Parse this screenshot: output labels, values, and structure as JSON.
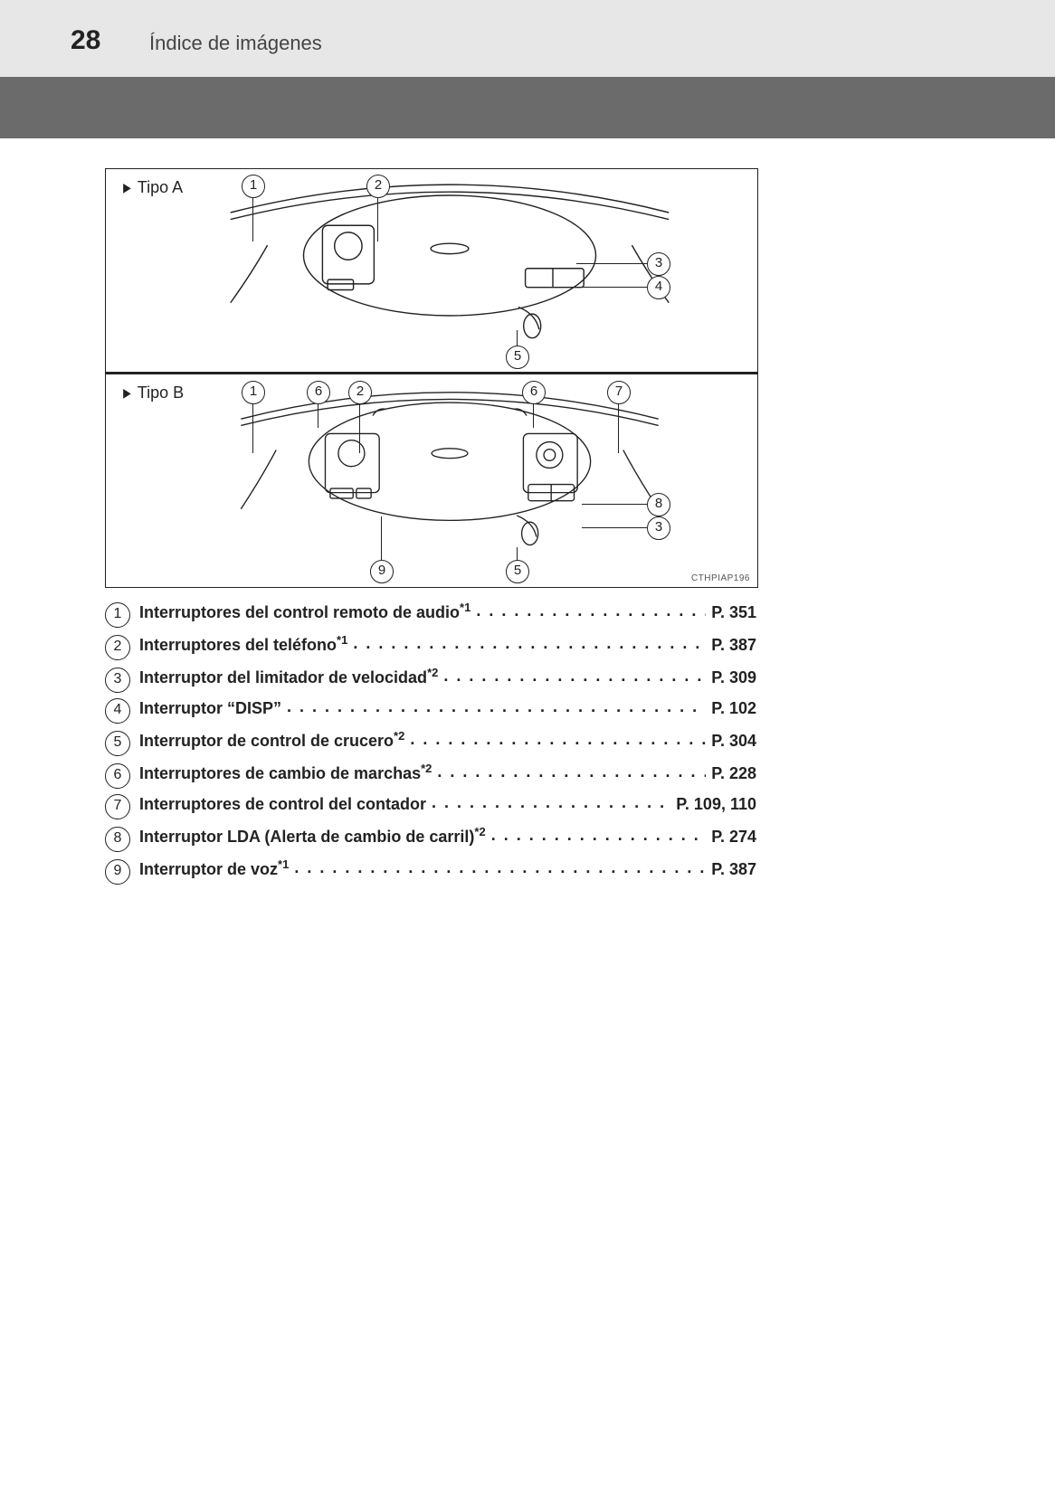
{
  "header": {
    "page_number": "28",
    "section": "Índice de imágenes"
  },
  "diagram": {
    "typeA_label": "Tipo A",
    "typeB_label": "Tipo B",
    "image_code": "CTHPIAP196",
    "typeA_callouts": [
      "1",
      "2",
      "3",
      "4",
      "5"
    ],
    "typeB_callouts": [
      "1",
      "6",
      "2",
      "6",
      "7",
      "8",
      "3",
      "9",
      "5"
    ]
  },
  "legend": [
    {
      "n": "1",
      "text": "Interruptores del control remoto de audio",
      "note": "*1",
      "note_type": "sup",
      "page": "P. 351"
    },
    {
      "n": "2",
      "text": "Interruptores del teléfono",
      "note": "*1",
      "note_type": "sup",
      "page": "P. 387"
    },
    {
      "n": "3",
      "text": "Interruptor del limitador de velocidad",
      "note": "*2",
      "note_type": "sup",
      "page": "P. 309"
    },
    {
      "n": "4",
      "text": "Interruptor “DISP”",
      "note": "",
      "note_type": "",
      "page": "P. 102"
    },
    {
      "n": "5",
      "text": "Interruptor de control de crucero",
      "note": "*2",
      "note_type": "sup",
      "page": "P. 304"
    },
    {
      "n": "6",
      "text": "Interruptores de cambio de marchas",
      "note": "*2",
      "note_type": "sup",
      "page": "P. 228"
    },
    {
      "n": "7",
      "text": "Interruptores de control del contador",
      "note": "",
      "note_type": "",
      "page": "P. 109, 110"
    },
    {
      "n": "8",
      "text": "Interruptor LDA (Alerta de cambio de carril)",
      "note": "*2",
      "note_type": "sup",
      "page": "P. 274"
    },
    {
      "n": "9",
      "text": "Interruptor de voz",
      "note": "*1",
      "note_type": "sup",
      "page": "P. 387"
    }
  ],
  "style": {
    "page_bg": "#ffffff",
    "header_bg": "#e7e7e7",
    "band_bg": "#6b6b6b",
    "text_color": "#222222",
    "legend_fontsize": 18,
    "legend_weight": "700",
    "circle_border": "#222222"
  }
}
